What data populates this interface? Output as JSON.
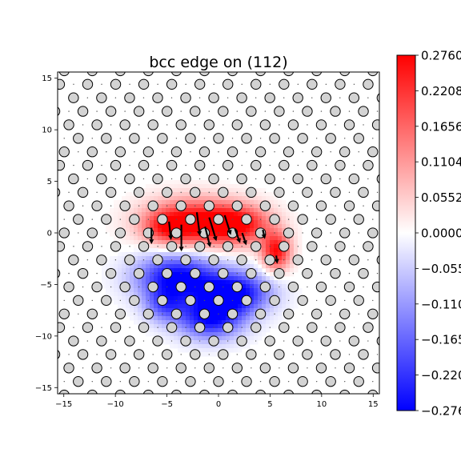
{
  "chart_data": {
    "type": "heatmap",
    "title": "bcc edge on (112)",
    "xlabel": "",
    "ylabel": "",
    "xlim": [
      -15.6,
      15.6
    ],
    "ylim": [
      -15.6,
      15.6
    ],
    "xticks": [
      -15,
      -10,
      -5,
      0,
      5,
      10,
      15
    ],
    "yticks": [
      -15,
      -10,
      -5,
      0,
      5,
      10,
      15
    ],
    "xtick_labels": [
      "−15",
      "−10",
      "−5",
      "0",
      "5",
      "10",
      "15"
    ],
    "ytick_labels": [
      "−15",
      "−10",
      "−5",
      "0",
      "5",
      "10",
      "15"
    ],
    "colormap": "bwr",
    "colors": {
      "min": "#0000ff",
      "mid": "#ffffff",
      "max": "#ff0000",
      "atom_fill": "#d3d3d3",
      "atom_edge": "#000000"
    },
    "colorbar": {
      "vmin": -0.276,
      "vmax": 0.276,
      "ticks": [
        0.276,
        0.2208,
        0.1656,
        0.1104,
        0.0552,
        0.0,
        -0.0552,
        -0.1104,
        -0.1656,
        -0.2208,
        -0.276
      ],
      "tick_labels": [
        "0.2760",
        "0.2208",
        "0.1656",
        "0.1104",
        "0.0552",
        "0.0000",
        "−0.055",
        "−0.110",
        "−0.165",
        "−0.220",
        "−0.276"
      ]
    },
    "field_blobs": [
      {
        "x": -2.5,
        "y": 1.0,
        "sx": 3.2,
        "sy": 1.6,
        "value": 0.276
      },
      {
        "x": 2.0,
        "y": 0.8,
        "sx": 2.2,
        "sy": 1.3,
        "value": 0.22
      },
      {
        "x": -5.0,
        "y": 0.5,
        "sx": 1.5,
        "sy": 1.0,
        "value": 0.12
      },
      {
        "x": 5.6,
        "y": -1.8,
        "sx": 1.0,
        "sy": 1.3,
        "value": 0.26
      },
      {
        "x": -4.0,
        "y": -4.3,
        "sx": 2.8,
        "sy": 1.6,
        "value": -0.276
      },
      {
        "x": 1.6,
        "y": -5.8,
        "sx": 2.4,
        "sy": 1.4,
        "value": -0.276
      },
      {
        "x": -0.8,
        "y": -8.3,
        "sx": 2.2,
        "sy": 1.4,
        "value": -0.26
      },
      {
        "x": -5.2,
        "y": -7.0,
        "sx": 1.4,
        "sy": 1.2,
        "value": -0.15
      }
    ],
    "atom_lattice": {
      "row_spacing": 1.31,
      "col_spacing": 2.72,
      "row_offsets": [
        0.0,
        1.36,
        0.45,
        1.81,
        0.9,
        2.27
      ]
    },
    "arrows": [
      {
        "x": -6.5,
        "y": 0.5,
        "dx": 0.0,
        "dy": -1.6
      },
      {
        "x": -4.8,
        "y": 1.1,
        "dx": 0.2,
        "dy": -1.8
      },
      {
        "x": -3.6,
        "y": 0.8,
        "dx": 0.0,
        "dy": -2.6
      },
      {
        "x": -2.1,
        "y": 2.0,
        "dx": 0.3,
        "dy": -2.3
      },
      {
        "x": -1.3,
        "y": 0.6,
        "dx": 0.5,
        "dy": -2.0
      },
      {
        "x": -0.9,
        "y": 1.5,
        "dx": 0.7,
        "dy": -2.3
      },
      {
        "x": 0.6,
        "y": 1.7,
        "dx": 0.6,
        "dy": -1.9
      },
      {
        "x": 1.6,
        "y": 0.4,
        "dx": 0.5,
        "dy": -1.4
      },
      {
        "x": 2.3,
        "y": 0.0,
        "dx": 0.4,
        "dy": -1.2
      },
      {
        "x": 4.3,
        "y": 0.3,
        "dx": 0.2,
        "dy": -0.9
      },
      {
        "x": 5.6,
        "y": -2.2,
        "dx": 0.1,
        "dy": -0.8
      }
    ]
  }
}
